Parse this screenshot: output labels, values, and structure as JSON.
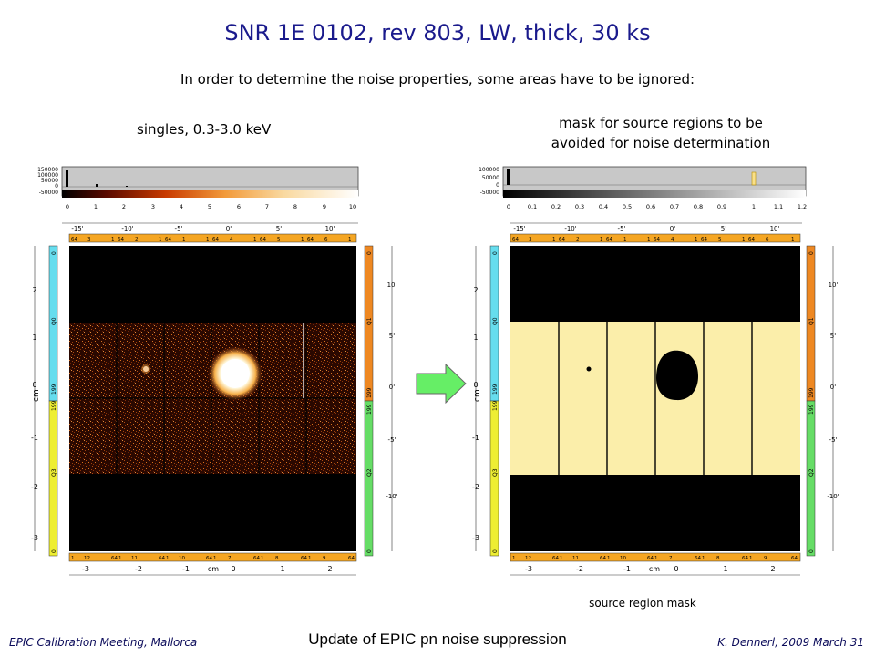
{
  "title": "SNR 1E 0102, rev 803, LW, thick, 30 ks",
  "subtitle": "In order to determine the noise properties, some areas have to be ignored:",
  "left_panel": {
    "caption": "singles, 0.3-3.0 keV",
    "hist_y_ticks": [
      "150000",
      "100000",
      "50000",
      "0",
      "-50000"
    ],
    "colorbar_ticks": [
      "0",
      "1",
      "2",
      "3",
      "4",
      "5",
      "6",
      "7",
      "8",
      "9",
      "10"
    ]
  },
  "right_panel": {
    "caption_line1": "mask for source regions to be",
    "caption_line2": "avoided for noise determination",
    "hist_y_ticks": [
      "100000",
      "50000",
      "0",
      "-50000"
    ],
    "colorbar_ticks": [
      "0",
      "0.1",
      "0.2",
      "0.3",
      "0.4",
      "0.5",
      "0.6",
      "0.7",
      "0.8",
      "0.9",
      "1",
      "1.1",
      "1.2"
    ],
    "bottom_caption": "source region mask"
  },
  "axes": {
    "top_arcmin": [
      "-15'",
      "-10'",
      "-5'",
      "0'",
      "5'",
      "10'"
    ],
    "right_arcmin": [
      "10'",
      "5'",
      "0'",
      "-5'",
      "-10'"
    ],
    "left_cm": [
      "2",
      "1",
      "0",
      "-1",
      "-2",
      "-3"
    ],
    "left_label": "cm",
    "bottom_cm": [
      "-3",
      "-2",
      "-1",
      "cm",
      "0",
      "1",
      "2"
    ],
    "top_strip": [
      "64",
      "3",
      "1",
      "64",
      "2",
      "1",
      "64",
      "1",
      "1",
      "64",
      "4",
      "1",
      "64",
      "5",
      "1",
      "64",
      "6",
      "1"
    ],
    "bottom_strip": [
      "1",
      "12",
      "64",
      "1",
      "11",
      "64",
      "1",
      "10",
      "64",
      "1",
      "7",
      "64",
      "1",
      "8",
      "64",
      "1",
      "9",
      "64"
    ],
    "left_strip_top": [
      "0",
      "Q0",
      "199",
      "64"
    ],
    "left_strip_bottom": [
      "199",
      "Q3",
      "0"
    ],
    "right_strip_top": [
      "0",
      "Q1",
      "199"
    ],
    "right_strip_bottom": [
      "199",
      "Q2",
      "0"
    ]
  },
  "footer": {
    "left": "EPIC Calibration Meeting, Mallorca",
    "center": "Update of EPIC pn noise suppression",
    "right": "K. Dennerl, 2009 March 31"
  },
  "colors": {
    "title": "#1a1a8c",
    "arrow": "#66ee66",
    "mask": "#fbeeaa",
    "strip_top_bottom": "#f5a623",
    "strip_left": "#66ddee",
    "strip_left_bottom": "#eeee33",
    "strip_right": "#ee8822",
    "strip_right_bottom": "#66dd66"
  }
}
